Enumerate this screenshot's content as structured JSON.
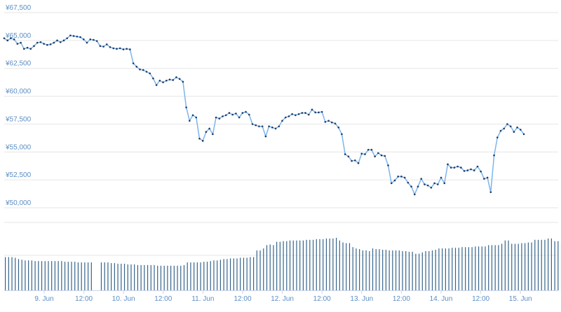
{
  "chart_data": {
    "type": "line",
    "price_series": {
      "x_step_hours": 1,
      "start_label": "8. Jun",
      "values": [
        65200,
        65000,
        65200,
        65100,
        64700,
        64800,
        64250,
        64350,
        64250,
        64500,
        64800,
        64850,
        64700,
        64600,
        64650,
        64800,
        65000,
        64850,
        65000,
        65200,
        65450,
        65400,
        65350,
        65300,
        65100,
        64800,
        65100,
        65050,
        64950,
        64500,
        64450,
        64650,
        64400,
        64300,
        64250,
        64300,
        64200,
        64250,
        64200,
        62950,
        62650,
        62400,
        62350,
        62200,
        62050,
        61600,
        61000,
        61400,
        61250,
        61400,
        61500,
        61450,
        61700,
        61550,
        61300,
        59000,
        57800,
        58300,
        58100,
        56200,
        56000,
        56800,
        57100,
        56600,
        58100,
        58000,
        58200,
        58300,
        58500,
        58350,
        58450,
        58100,
        58500,
        58600,
        58350,
        57500,
        57400,
        57300,
        57300,
        56400,
        57300,
        57200,
        57100,
        57300,
        57800,
        58100,
        58200,
        58400,
        58300,
        58400,
        58500,
        58500,
        58350,
        58800,
        58550,
        58550,
        58600,
        57700,
        57800,
        57650,
        57550,
        57200,
        56600,
        54800,
        54600,
        54200,
        54250,
        54000,
        54850,
        54800,
        55200,
        55200,
        54600,
        54900,
        54700,
        54650,
        53800,
        52200,
        52450,
        52800,
        52800,
        52700,
        52250,
        51900,
        51200,
        51900,
        52600,
        52100,
        52000,
        51800,
        52200,
        52100,
        52700,
        52200,
        53900,
        53600,
        53600,
        53700,
        53600,
        53300,
        53350,
        53450,
        53350,
        53700,
        53250,
        52600,
        52700,
        51400,
        54700,
        56300,
        56900,
        57100,
        57500,
        57300,
        56800,
        57200,
        57000,
        56600
      ]
    },
    "volume_series": {
      "values": [
        50,
        50,
        50,
        49,
        47,
        46,
        45,
        45,
        45,
        44,
        44,
        44,
        44,
        44,
        44,
        44,
        44,
        44,
        43,
        43,
        43,
        43,
        42,
        42,
        42,
        42,
        42,
        0,
        0,
        42,
        42,
        42,
        41,
        41,
        40,
        40,
        40,
        39,
        39,
        39,
        38,
        38,
        38,
        38,
        38,
        38,
        37,
        37,
        37,
        37,
        37,
        37,
        37,
        37,
        38,
        42,
        42,
        42,
        42,
        42,
        43,
        43,
        44,
        45,
        45,
        46,
        47,
        47,
        48,
        48,
        48,
        49,
        49,
        49,
        50,
        50,
        60,
        60,
        63,
        68,
        69,
        68,
        73,
        73,
        74,
        74,
        75,
        75,
        75,
        75,
        75,
        76,
        76,
        76,
        77,
        77,
        77,
        78,
        78,
        78,
        79,
        75,
        72,
        71,
        71,
        65,
        63,
        62,
        60,
        60,
        59,
        63,
        62,
        62,
        61,
        61,
        60,
        60,
        60,
        60,
        59,
        59,
        58,
        58,
        55,
        55,
        57,
        59,
        59,
        60,
        61,
        63,
        63,
        63,
        63,
        64,
        64,
        64,
        65,
        65,
        65,
        65,
        66,
        66,
        66,
        66,
        68,
        68,
        68,
        68,
        70,
        75,
        75,
        70,
        70,
        70,
        71,
        71,
        72,
        72,
        76,
        76,
        76,
        76,
        78,
        78,
        74,
        74,
        73,
        73,
        73,
        73,
        74,
        90,
        89,
        89,
        89,
        89,
        89,
        89,
        89,
        88,
        88,
        88,
        87,
        87
      ]
    },
    "yaxis": {
      "tick_values": [
        50000,
        52500,
        55000,
        57500,
        60000,
        62500,
        65000,
        67500
      ],
      "tick_labels": [
        "¥50,000",
        "¥52,500",
        "¥55,000",
        "¥57,500",
        "¥60,000",
        "¥62,500",
        "¥65,000",
        "¥67,500"
      ],
      "range": [
        50000,
        67500
      ]
    },
    "xaxis": {
      "tick_labels": [
        "9. Jun",
        "12:00",
        "10. Jun",
        "12:00",
        "11. Jun",
        "12:00",
        "12. Jun",
        "12:00",
        "13. Jun",
        "12:00",
        "14. Jun",
        "12:00",
        "15. Jun"
      ]
    },
    "grid": true,
    "legend": "none"
  },
  "colors": {
    "line": "#7cb5ec",
    "marker": "#1f3b66",
    "volume": "#36648b",
    "grid": "#e6e6e6",
    "tick_text": "#5b8ec4",
    "baseline": "#ccd6eb"
  }
}
